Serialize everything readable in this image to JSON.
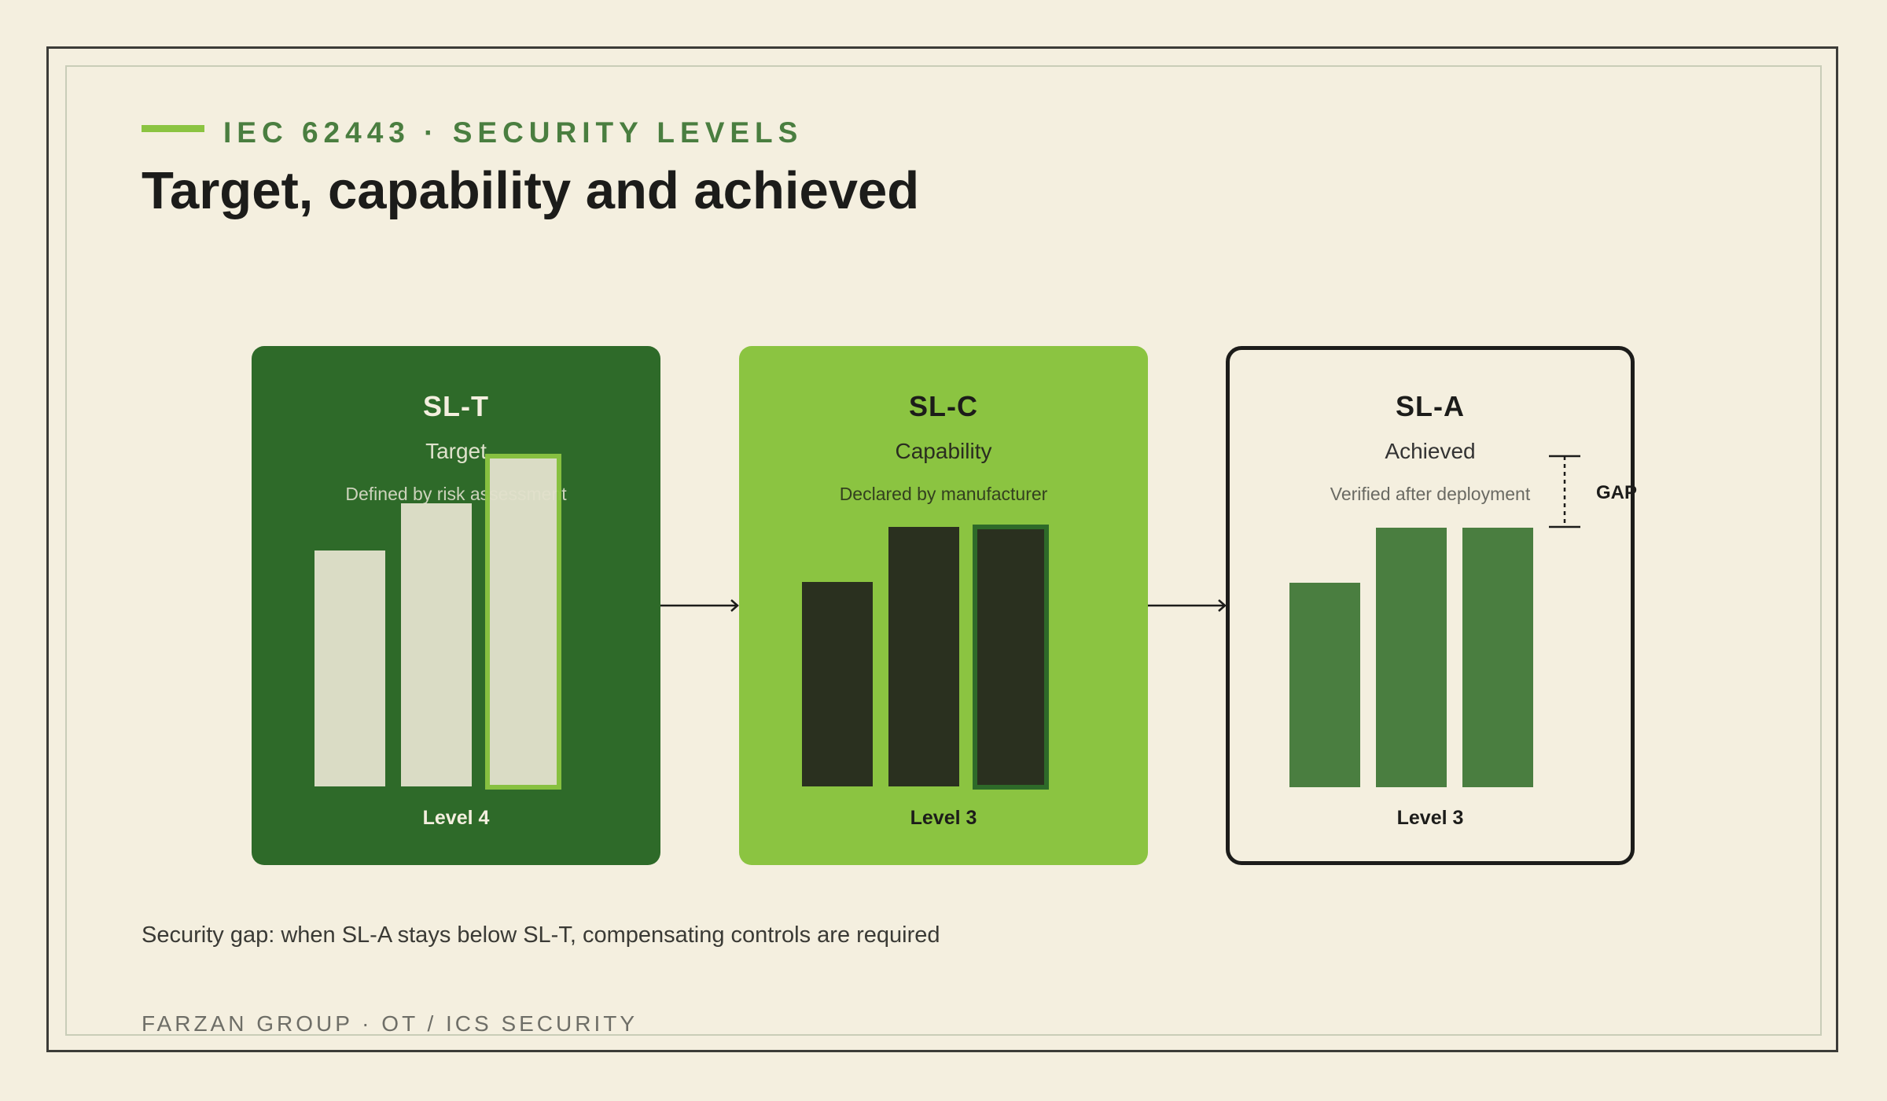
{
  "header": {
    "eyebrow": "IEC 62443 · SECURITY LEVELS",
    "title": "Target, capability and achieved"
  },
  "cards": [
    {
      "name": "SL-T",
      "subtitle": "Target",
      "description": "Defined by risk assessment",
      "level_label": "Level 4",
      "level": 4
    },
    {
      "name": "SL-C",
      "subtitle": "Capability",
      "description": "Declared by manufacturer",
      "level_label": "Level 3",
      "level": 3
    },
    {
      "name": "SL-A",
      "subtitle": "Achieved",
      "description": "Verified after deployment",
      "level_label": "Level 3",
      "level": 3
    }
  ],
  "gap_label": "GAP",
  "note": "Security gap: when SL-A stays below SL-T, compensating controls are required",
  "footer": "FARZAN GROUP · OT / ICS SECURITY",
  "colors": {
    "background": "#f4efdf",
    "dark_green": "#2e6a29",
    "accent_green": "#8bc441",
    "mid_green": "#4a7e40",
    "ink": "#1c1c1a"
  }
}
